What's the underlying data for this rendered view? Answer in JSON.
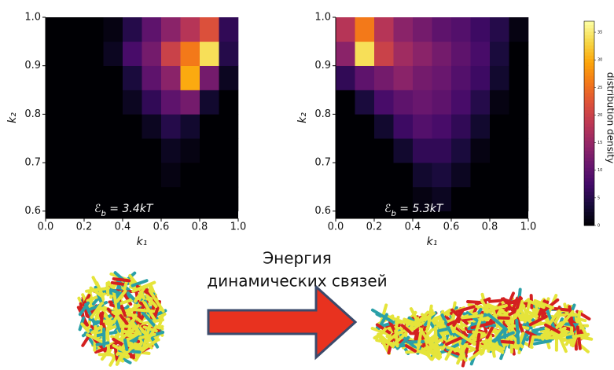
{
  "chart_data": [
    {
      "type": "heatmap",
      "xlabel": "k₁",
      "ylabel": "k₂",
      "annotation": {
        "symbol": "ℰ",
        "subscript": "b",
        "text": " = 3.4kT"
      },
      "xlim": [
        0,
        1
      ],
      "ylim": [
        0.585,
        1.0
      ],
      "xticks": [
        {
          "value": 0,
          "label": "0.0"
        },
        0.2,
        0.4,
        0.6,
        0.8,
        {
          "value": 1,
          "label": "1.0"
        }
      ],
      "yticks": [
        0.6,
        0.7,
        0.8,
        0.9,
        {
          "value": 1,
          "label": "1.0"
        }
      ],
      "xbins": [
        0,
        0.1,
        0.2,
        0.3,
        0.4,
        0.5,
        0.6,
        0.7,
        0.8,
        0.9,
        1.0
      ],
      "ybins": [
        0.6,
        0.65,
        0.7,
        0.75,
        0.8,
        0.85,
        0.9,
        0.95,
        1.0
      ],
      "z": [
        [
          0,
          0,
          0,
          0,
          0,
          0,
          0,
          0,
          0,
          0
        ],
        [
          0,
          0,
          0,
          0,
          0,
          0,
          1,
          0,
          0,
          0
        ],
        [
          0,
          0,
          0,
          0,
          0,
          0,
          2,
          1,
          0,
          0
        ],
        [
          0,
          0,
          0,
          0,
          0,
          2,
          5,
          3,
          0,
          0
        ],
        [
          0,
          0,
          0,
          0,
          2,
          6,
          10,
          12,
          3,
          0
        ],
        [
          0,
          0,
          0,
          0,
          4,
          10,
          14,
          30,
          12,
          2
        ],
        [
          0,
          0,
          0,
          2,
          8,
          12,
          20,
          26,
          34,
          5
        ],
        [
          0,
          0,
          0,
          1,
          5,
          10,
          14,
          18,
          22,
          6
        ]
      ]
    },
    {
      "type": "heatmap",
      "xlabel": "k₁",
      "ylabel": "k₂",
      "annotation": {
        "symbol": "ℰ",
        "subscript": "b",
        "text": " = 5.3kT"
      },
      "xlim": [
        0,
        1
      ],
      "ylim": [
        0.585,
        1.0
      ],
      "xticks": [
        {
          "value": 0,
          "label": "0.0"
        },
        0.2,
        0.4,
        0.6,
        0.8,
        {
          "value": 1,
          "label": "1.0"
        }
      ],
      "yticks": [
        0.6,
        0.7,
        0.8,
        0.9,
        {
          "value": 1,
          "label": "1.0"
        }
      ],
      "xbins": [
        0,
        0.1,
        0.2,
        0.3,
        0.4,
        0.5,
        0.6,
        0.7,
        0.8,
        0.9,
        1.0
      ],
      "ybins": [
        0.6,
        0.65,
        0.7,
        0.75,
        0.8,
        0.85,
        0.9,
        0.95,
        1.0
      ],
      "z": [
        [
          0,
          0,
          0,
          0,
          1,
          2,
          0,
          0,
          0,
          0
        ],
        [
          0,
          0,
          0,
          0,
          3,
          4,
          2,
          0,
          0,
          0
        ],
        [
          0,
          0,
          0,
          3,
          6,
          6,
          4,
          1,
          0,
          0
        ],
        [
          0,
          0,
          3,
          7,
          9,
          8,
          6,
          3,
          0,
          0
        ],
        [
          0,
          4,
          8,
          10,
          11,
          10,
          8,
          5,
          1,
          0
        ],
        [
          6,
          10,
          12,
          14,
          12,
          11,
          9,
          7,
          3,
          0
        ],
        [
          14,
          34,
          20,
          16,
          14,
          12,
          10,
          8,
          4,
          0
        ],
        [
          18,
          26,
          18,
          14,
          12,
          10,
          9,
          7,
          5,
          1
        ]
      ]
    },
    {
      "type": "colorbar",
      "label": "distribution density",
      "colormap": "inferno",
      "ylim": [
        0,
        37
      ],
      "yticks": [
        0,
        5,
        10,
        15,
        20,
        25,
        30,
        35
      ]
    }
  ],
  "caption": {
    "lines": [
      "Энергия",
      "динамических связей"
    ]
  }
}
